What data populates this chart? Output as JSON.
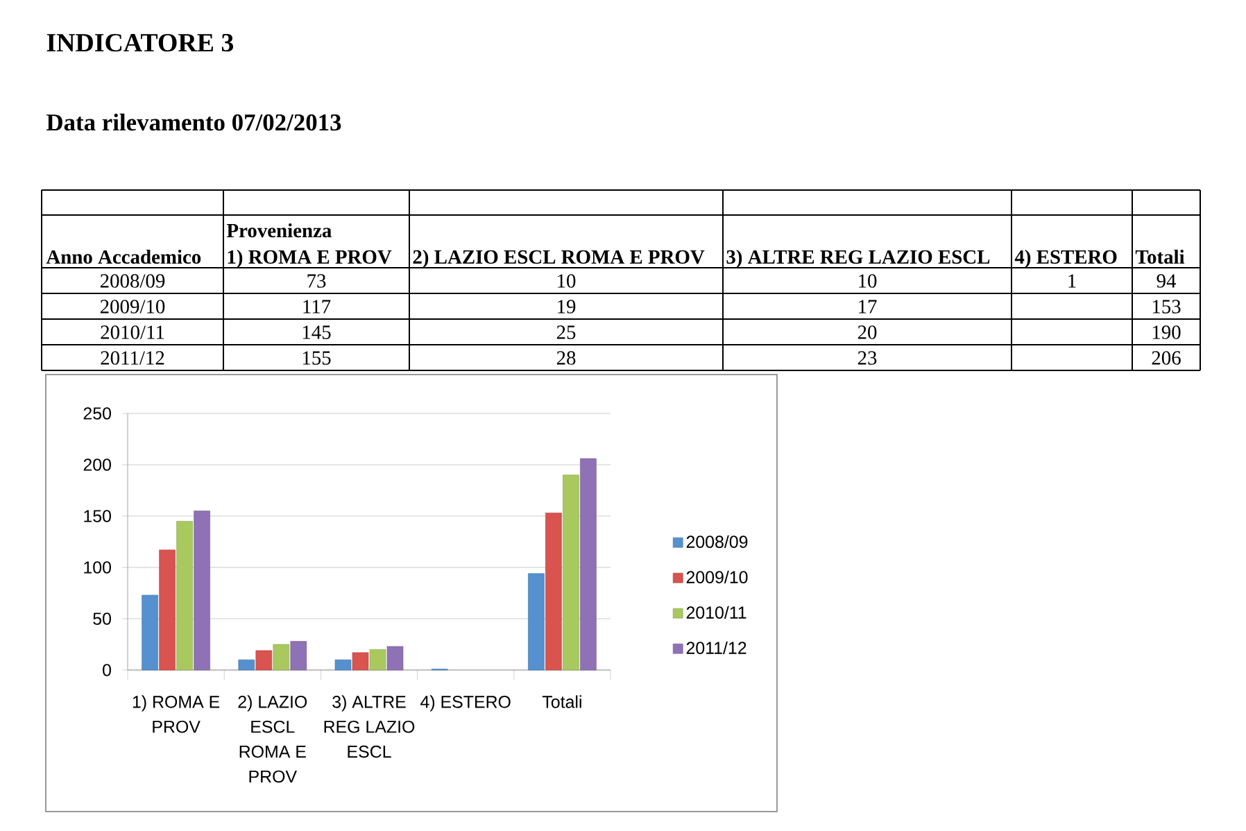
{
  "chart_data": [
    {
      "type": "other",
      "title": "INDICATORE 3",
      "subtitle": "Data rilevamento 07/02/2013",
      "annotations": [
        "Provenienza",
        "Anno Accademico"
      ],
      "categories": [
        "1) ROMA E PROV",
        "2) LAZIO ESCL ROMA E PROV",
        "3) ALTRE REG LAZIO ESCL",
        "4) ESTERO",
        "Totali"
      ],
      "series": [
        {
          "name": "2008/09",
          "values": [
            73,
            10,
            10,
            1,
            94
          ]
        },
        {
          "name": "2009/10",
          "values": [
            117,
            19,
            17,
            null,
            153
          ]
        },
        {
          "name": "2010/11",
          "values": [
            145,
            25,
            20,
            null,
            190
          ]
        },
        {
          "name": "2011/12",
          "values": [
            155,
            28,
            23,
            null,
            206
          ]
        }
      ],
      "data_labels": true
    },
    {
      "type": "bar",
      "categories": [
        "1) ROMA E PROV",
        "2) LAZIO ESCL ROMA E PROV",
        "3) ALTRE REG LAZIO ESCL",
        "4) ESTERO",
        "Totali"
      ],
      "series": [
        {
          "name": "2008/09",
          "color": "#5590cf",
          "values": [
            73,
            10,
            10,
            1,
            94
          ]
        },
        {
          "name": "2009/10",
          "color": "#d9534f",
          "values": [
            117,
            19,
            17,
            null,
            153
          ]
        },
        {
          "name": "2010/11",
          "color": "#a9c95f",
          "values": [
            145,
            25,
            20,
            null,
            190
          ]
        },
        {
          "name": "2011/12",
          "color": "#8f72b5",
          "values": [
            155,
            28,
            23,
            null,
            206
          ]
        }
      ],
      "ylim": [
        0,
        250
      ],
      "yticks": [
        0,
        50,
        100,
        150,
        200,
        250
      ],
      "grid": "y",
      "legend": "right"
    }
  ]
}
